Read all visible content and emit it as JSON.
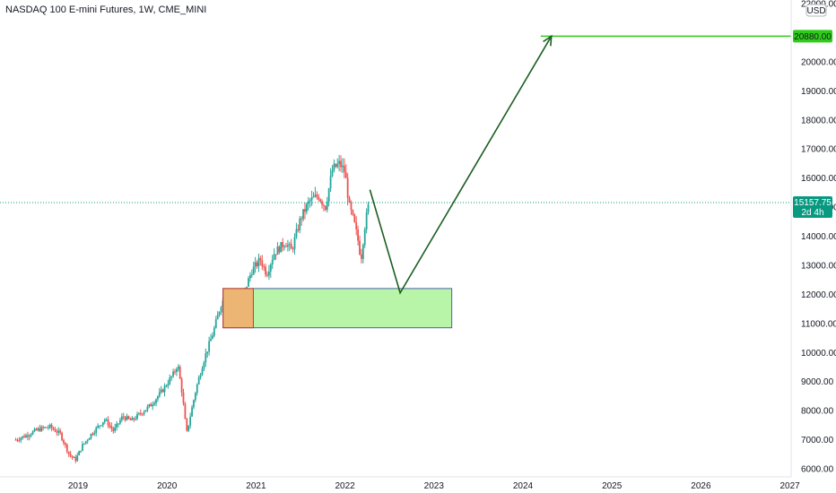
{
  "chart_data": {
    "type": "candlestick",
    "title": "NASDAQ 100 E-mini Futures, 1W, CME_MINI",
    "currency": "USD",
    "y_axis": {
      "min": 5800,
      "max": 22000,
      "ticks": [
        "6000.00",
        "7000.00",
        "8000.00",
        "9000.00",
        "10000.00",
        "11000.00",
        "12000.00",
        "13000.00",
        "14000.00",
        "15000.00",
        "16000.00",
        "17000.00",
        "18000.00",
        "19000.00",
        "20000.00",
        "22000.00"
      ],
      "tick_values": [
        6000,
        7000,
        8000,
        9000,
        10000,
        11000,
        12000,
        13000,
        14000,
        15000,
        16000,
        17000,
        18000,
        19000,
        20000,
        22000
      ]
    },
    "x_axis": {
      "start": 2018.3,
      "end": 2027.0,
      "ticks": [
        "2019",
        "2020",
        "2021",
        "2022",
        "2023",
        "2024",
        "2025",
        "2026",
        "2027"
      ],
      "tick_values": [
        2019,
        2020,
        2021,
        2022,
        2023,
        2024,
        2025,
        2026,
        2027
      ]
    },
    "price_path": [
      [
        2018.3,
        7000
      ],
      [
        2018.42,
        7150
      ],
      [
        2018.55,
        7350
      ],
      [
        2018.68,
        7450
      ],
      [
        2018.8,
        7200
      ],
      [
        2018.9,
        6500
      ],
      [
        2018.97,
        6300
      ],
      [
        2019.05,
        6800
      ],
      [
        2019.15,
        7200
      ],
      [
        2019.3,
        7700
      ],
      [
        2019.4,
        7300
      ],
      [
        2019.5,
        7800
      ],
      [
        2019.6,
        7650
      ],
      [
        2019.7,
        7900
      ],
      [
        2019.82,
        8200
      ],
      [
        2019.95,
        8700
      ],
      [
        2020.08,
        9300
      ],
      [
        2020.12,
        9600
      ],
      [
        2020.17,
        8600
      ],
      [
        2020.22,
        7200
      ],
      [
        2020.26,
        7800
      ],
      [
        2020.33,
        8800
      ],
      [
        2020.42,
        9800
      ],
      [
        2020.52,
        10700
      ],
      [
        2020.62,
        11800
      ],
      [
        2020.7,
        11500
      ],
      [
        2020.78,
        11200
      ],
      [
        2020.86,
        12000
      ],
      [
        2020.95,
        12800
      ],
      [
        2021.05,
        13200
      ],
      [
        2021.12,
        12700
      ],
      [
        2021.2,
        13400
      ],
      [
        2021.33,
        13800
      ],
      [
        2021.4,
        13500
      ],
      [
        2021.5,
        14600
      ],
      [
        2021.6,
        15200
      ],
      [
        2021.7,
        15400
      ],
      [
        2021.78,
        15000
      ],
      [
        2021.86,
        16300
      ],
      [
        2021.94,
        16500
      ],
      [
        2022.0,
        16200
      ],
      [
        2022.05,
        15000
      ],
      [
        2022.1,
        14500
      ],
      [
        2022.15,
        13800
      ],
      [
        2022.18,
        13200
      ],
      [
        2022.22,
        14300
      ],
      [
        2022.27,
        15157.75
      ]
    ],
    "current_price": {
      "value": 15157.75,
      "label": "15157.75",
      "countdown": "2d 4h",
      "color": "#089981"
    },
    "target": {
      "value": 20880,
      "label": "20880.00",
      "color": "#2ecc18"
    },
    "demand_zone": {
      "x_start": 2020.63,
      "x_end": 2023.2,
      "y_low": 10850,
      "y_high": 12200,
      "fill": "#b8f5a8",
      "stroke": "#4a63a8"
    },
    "order_block": {
      "x_start": 2020.63,
      "x_end": 2020.97,
      "y_low": 10850,
      "y_high": 12200,
      "fill": "#f6a96a",
      "stroke": "#c0392b"
    },
    "projection": {
      "points": [
        [
          2022.28,
          15600
        ],
        [
          2022.62,
          12050
        ],
        [
          2024.32,
          20880
        ]
      ],
      "color": "#1b5e20"
    },
    "colors": {
      "up": "#26a69a",
      "down": "#ef5350",
      "axis_text": "#131722",
      "border": "#e0e3eb"
    }
  }
}
